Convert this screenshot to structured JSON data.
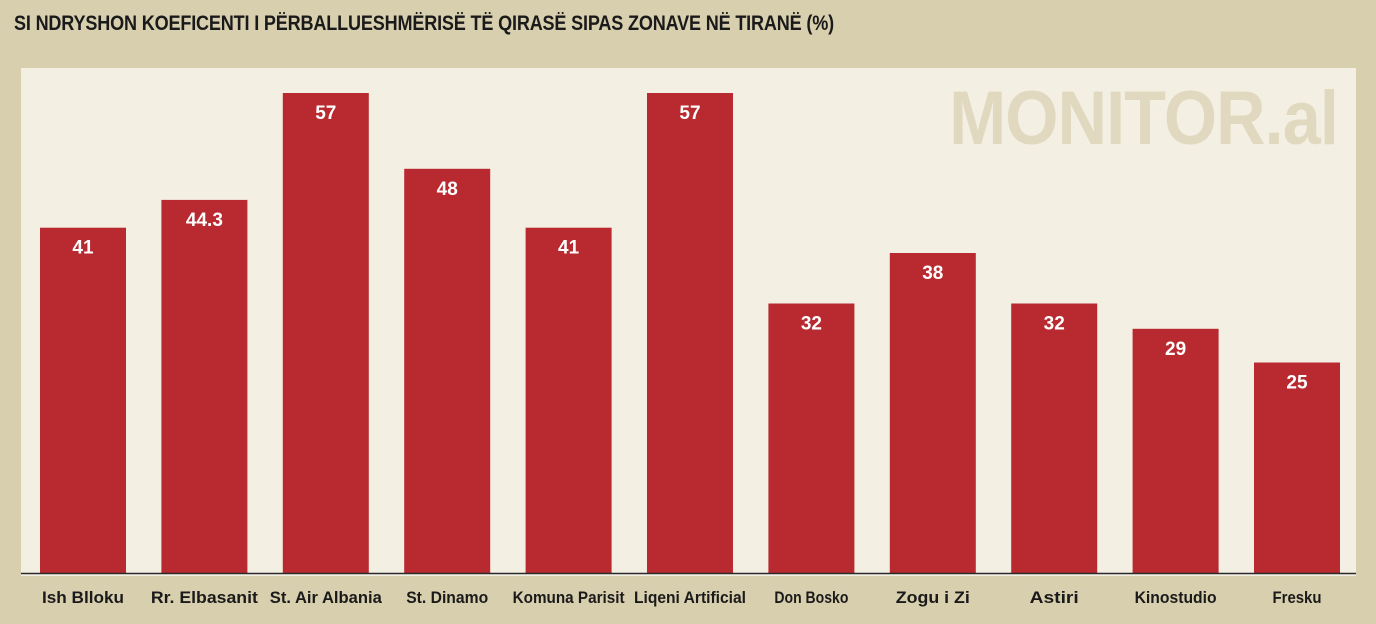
{
  "title": "SI NDRYSHON KOEFICENTI I PËRBALLUESHMËRISË TË QIRASË SIPAS ZONAVE NË TIRANË (%)",
  "watermark": "MONITOR.al",
  "colors": {
    "bar": "#b82a30",
    "background": "#d8cfae",
    "plot_background": "#f3efe3",
    "watermark": "#e0d8bf"
  },
  "chart_data": {
    "type": "bar",
    "title": "SI NDRYSHON KOEFICENTI I PËRBALLUESHMËRISË TË QIRASË SIPAS ZONAVE NË TIRANË (%)",
    "categories": [
      "Ish Blloku",
      "Rr. Elbasanit",
      "St. Air Albania",
      "St. Dinamo",
      "Komuna Parisit",
      "Liqeni Artificial",
      "Don Bosko",
      "Zogu i Zi",
      "Astiri",
      "Kinostudio",
      "Fresku"
    ],
    "values": [
      41,
      44.3,
      57,
      48,
      41,
      57,
      32,
      38,
      32,
      29,
      25
    ],
    "value_labels": [
      "41",
      "44.3",
      "57",
      "48",
      "41",
      "57",
      "32",
      "38",
      "32",
      "29",
      "25"
    ],
    "xlabel": "",
    "ylabel": "",
    "ylim": [
      0,
      57
    ],
    "grid": false,
    "legend": "none"
  }
}
